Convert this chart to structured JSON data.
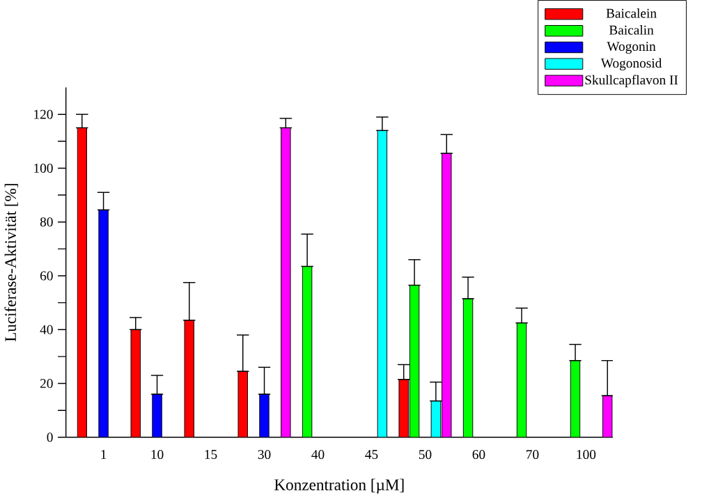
{
  "chart_data": {
    "type": "bar",
    "xlabel": "Konzentration [µM]",
    "ylabel": "Luciferase-Aktivität [%]",
    "categories": [
      "1",
      "10",
      "15",
      "30",
      "40",
      "45",
      "50",
      "60",
      "70",
      "100"
    ],
    "series": [
      {
        "name": "Baicalein",
        "color": "#ff0000",
        "values": [
          115,
          40,
          43.5,
          24.5,
          null,
          null,
          21.5,
          null,
          null,
          null
        ],
        "errors": [
          [
            115,
            120
          ],
          [
            40,
            44.5
          ],
          [
            43.5,
            57.5
          ],
          [
            24.5,
            38
          ],
          null,
          null,
          [
            21.5,
            27
          ],
          null,
          null,
          null
        ]
      },
      {
        "name": "Baicalin",
        "color": "#00ff00",
        "values": [
          null,
          null,
          null,
          null,
          63.5,
          null,
          56.5,
          51.5,
          42.5,
          28.5
        ],
        "errors": [
          null,
          null,
          null,
          null,
          [
            63.5,
            75.5
          ],
          null,
          [
            56.5,
            66
          ],
          [
            51.5,
            59.5
          ],
          [
            42.5,
            48
          ],
          [
            28.5,
            34.5
          ]
        ]
      },
      {
        "name": "Wogonin",
        "color": "#0000ff",
        "values": [
          84.5,
          16,
          null,
          16,
          null,
          null,
          null,
          null,
          null,
          null
        ],
        "errors": [
          [
            84.5,
            91
          ],
          [
            16,
            23
          ],
          null,
          [
            16,
            26
          ],
          null,
          null,
          null,
          null,
          null,
          null
        ]
      },
      {
        "name": "Wogonosid",
        "color": "#00ffff",
        "values": [
          null,
          null,
          null,
          null,
          null,
          114,
          13.5,
          null,
          null,
          null
        ],
        "errors": [
          null,
          null,
          null,
          null,
          null,
          [
            114,
            119
          ],
          [
            13.5,
            20.5
          ],
          null,
          null,
          null
        ]
      },
      {
        "name": "Skullcapflavon II",
        "color": "#ff00ff",
        "values": [
          null,
          null,
          null,
          115,
          null,
          null,
          105.5,
          null,
          null,
          15.5
        ],
        "errors": [
          null,
          null,
          null,
          [
            115,
            118.5
          ],
          null,
          null,
          [
            105.5,
            112.5
          ],
          null,
          null,
          [
            15.5,
            28.5
          ]
        ]
      }
    ],
    "ylim": [
      0,
      130
    ],
    "yticks": [
      0,
      20,
      40,
      60,
      80,
      100,
      120
    ],
    "grid": false,
    "legend": "top right"
  }
}
